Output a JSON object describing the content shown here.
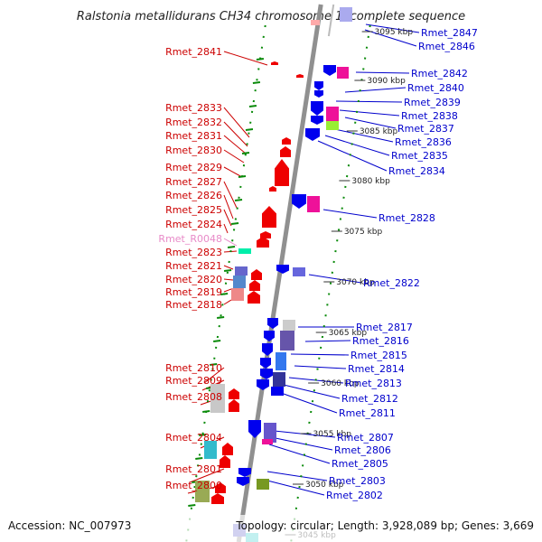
{
  "title": "Ralstonia metallidurans CH34 chromosome 1, complete sequence",
  "accession": "Accession: NC_007973",
  "topology": "Topology: circular; Length: 3,928,089 bp; Genes: 3,669",
  "colors": {
    "forward_label": "#cc0000",
    "reverse_label": "#0000cc",
    "rna_label": "#e88ac8",
    "forward_feature": "#ee0000",
    "reverse_feature": "#0000ee",
    "tick": "#0a8a0a",
    "backbone": "#909090"
  },
  "scale_labels": [
    "3095 kbp",
    "3090 kbp",
    "3085 kbp",
    "3080 kbp",
    "3075 kbp",
    "3070 kbp",
    "3065 kbp",
    "3060 kbp",
    "3055 kbp",
    "3050 kbp",
    "3045 kbp"
  ],
  "forward_genes": [
    "Rmet_2841",
    "Rmet_2833",
    "Rmet_2832",
    "Rmet_2831",
    "Rmet_2830",
    "Rmet_2829",
    "Rmet_2827",
    "Rmet_2826",
    "Rmet_2825",
    "Rmet_2824",
    "Rmet_R0048",
    "Rmet_2823",
    "Rmet_2821",
    "Rmet_2820",
    "Rmet_2819",
    "Rmet_2818",
    "Rmet_2810",
    "Rmet_2809",
    "Rmet_2808",
    "Rmet_2804",
    "Rmet_2801",
    "Rmet_2800"
  ],
  "reverse_genes": [
    "Rmet_2847",
    "Rmet_2846",
    "Rmet_2842",
    "Rmet_2840",
    "Rmet_2839",
    "Rmet_2838",
    "Rmet_2837",
    "Rmet_2836",
    "Rmet_2835",
    "Rmet_2834",
    "Rmet_2828",
    "Rmet_2822",
    "Rmet_2817",
    "Rmet_2816",
    "Rmet_2815",
    "Rmet_2814",
    "Rmet_2813",
    "Rmet_2812",
    "Rmet_2811",
    "Rmet_2807",
    "Rmet_2806",
    "Rmet_2805",
    "Rmet_2803",
    "Rmet_2802"
  ]
}
